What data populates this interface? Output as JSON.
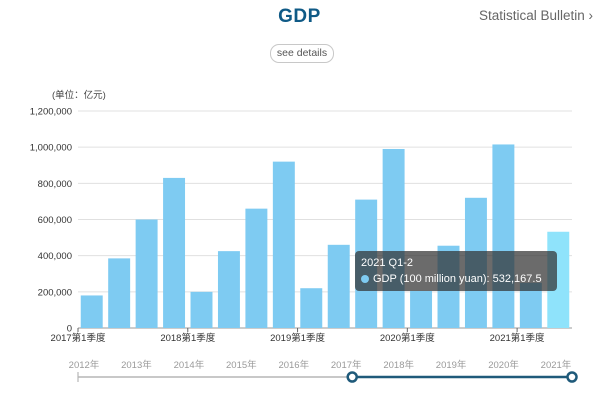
{
  "header": {
    "title": "GDP",
    "bulletin_link": "Statistical Bulletin ›",
    "details_button": "see details"
  },
  "colors": {
    "title": "#0f5a86",
    "bar": "#7ecbf2",
    "bar_highlight": "#8fe3fb",
    "grid": "#e0e0e0",
    "slider": "#1f5a7a"
  },
  "chart_data": {
    "type": "bar",
    "unit_label": "(单位：亿元)",
    "ylim": [
      0,
      1200000
    ],
    "yticks": [
      0,
      200000,
      400000,
      600000,
      800000,
      1000000,
      1200000
    ],
    "ytick_labels": [
      "0",
      "200,000",
      "400,000",
      "600,000",
      "800,000",
      "1,000,000",
      "1,200,000"
    ],
    "grid": true,
    "x_tick_labels": [
      "2017第1季度",
      "2018第1季度",
      "2019第1季度",
      "2020第1季度",
      "2021第1季度"
    ],
    "x_tick_indices": [
      0,
      4,
      8,
      12,
      16
    ],
    "values": [
      180000,
      385000,
      600000,
      830000,
      200000,
      425000,
      660000,
      920000,
      220000,
      460000,
      710000,
      990000,
      205000,
      455000,
      720000,
      1015000,
      250000,
      532167.5
    ],
    "highlight_index": 17,
    "tooltip": {
      "title": "2021 Q1-2",
      "series_name": "GDP (100 million yuan)",
      "value_text": "532,167.5"
    },
    "timeline": {
      "years": [
        "2012年",
        "2013年",
        "2014年",
        "2015年",
        "2016年",
        "2017年",
        "2018年",
        "2019年",
        "2020年",
        "2021年"
      ],
      "range_start": "2017年",
      "range_end": "2021年"
    }
  }
}
